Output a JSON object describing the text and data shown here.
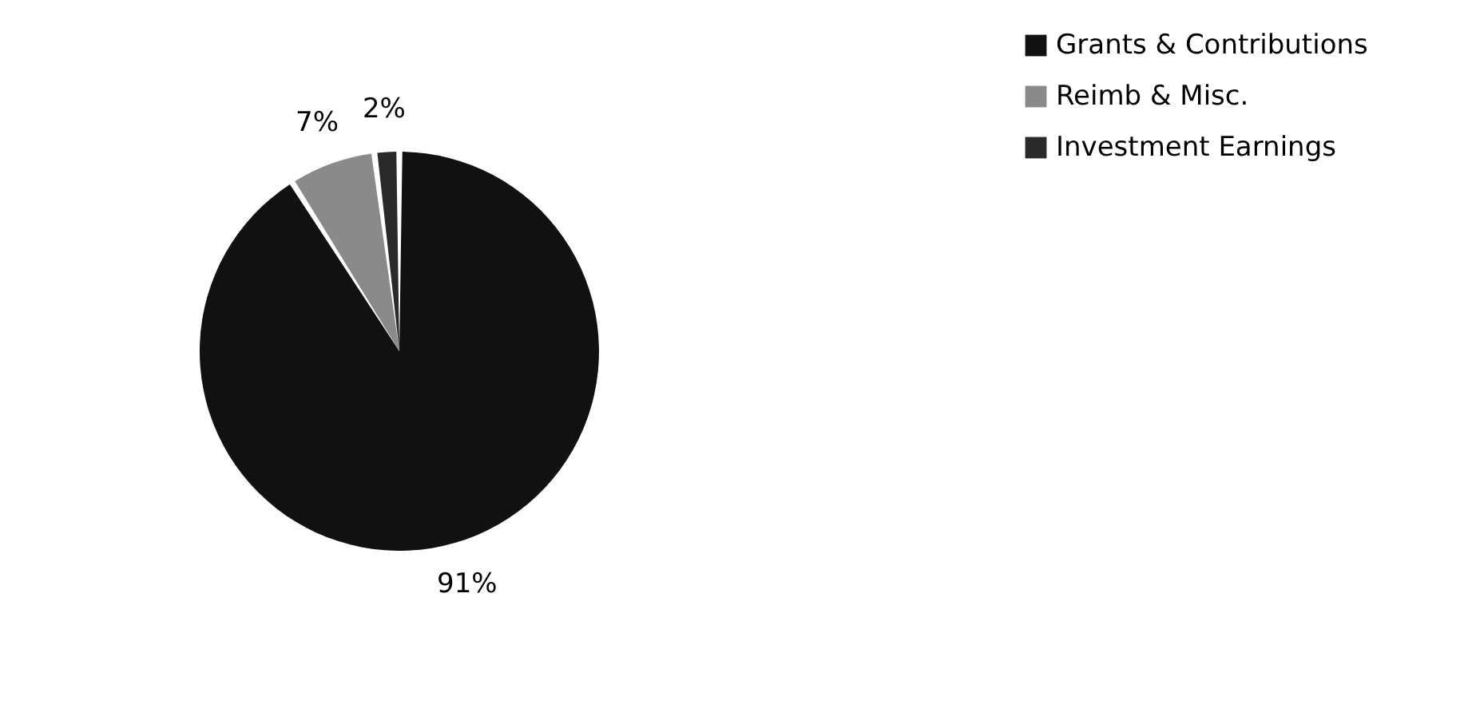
{
  "chart_data": {
    "type": "pie",
    "categories": [
      "Grants & Contributions",
      "Reimb & Misc.",
      "Investment Earnings"
    ],
    "values": [
      91,
      7,
      2
    ],
    "colors": [
      "#111111",
      "#8a8a8a",
      "#2a2a2a"
    ],
    "value_labels": [
      "91%",
      "7%",
      "2%"
    ],
    "legend": "right"
  }
}
